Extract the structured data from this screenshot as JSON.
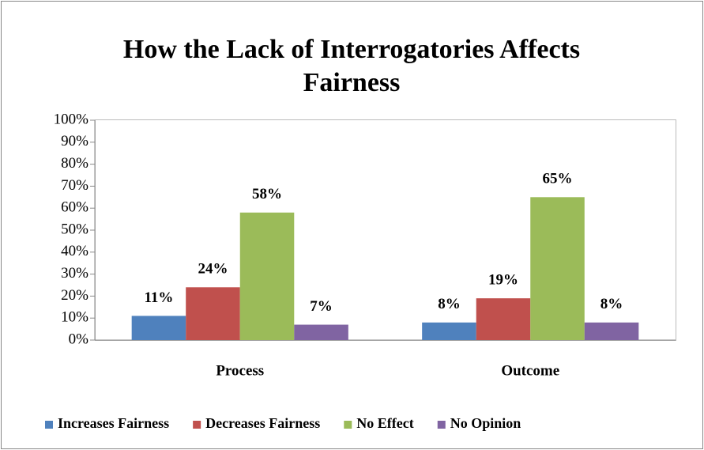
{
  "chart_data": {
    "type": "bar",
    "title": "How the Lack of Interrogatories Affects Fairness",
    "categories": [
      "Process",
      "Outcome"
    ],
    "series": [
      {
        "name": "Increases Fairness",
        "color": "#4f81bd",
        "values": [
          11,
          8
        ],
        "value_labels": [
          "11%",
          "8%"
        ]
      },
      {
        "name": "Decreases Fairness",
        "color": "#c0504d",
        "values": [
          24,
          19
        ],
        "value_labels": [
          "24%",
          "19%"
        ]
      },
      {
        "name": "No Effect",
        "color": "#9bbb59",
        "values": [
          58,
          65
        ],
        "value_labels": [
          "58%",
          "65%"
        ]
      },
      {
        "name": "No Opinion",
        "color": "#8064a2",
        "values": [
          7,
          8
        ],
        "value_labels": [
          "7%",
          "8%"
        ]
      }
    ],
    "ylim": [
      0,
      100
    ],
    "yticks": [
      {
        "value": 0,
        "label": "0%"
      },
      {
        "value": 10,
        "label": "10%"
      },
      {
        "value": 20,
        "label": "20%"
      },
      {
        "value": 30,
        "label": "30%"
      },
      {
        "value": 40,
        "label": "40%"
      },
      {
        "value": 50,
        "label": "50%"
      },
      {
        "value": 60,
        "label": "60%"
      },
      {
        "value": 70,
        "label": "70%"
      },
      {
        "value": 80,
        "label": "80%"
      },
      {
        "value": 90,
        "label": "90%"
      },
      {
        "value": 100,
        "label": "100%"
      }
    ],
    "grid": false,
    "legend": "bottom"
  }
}
